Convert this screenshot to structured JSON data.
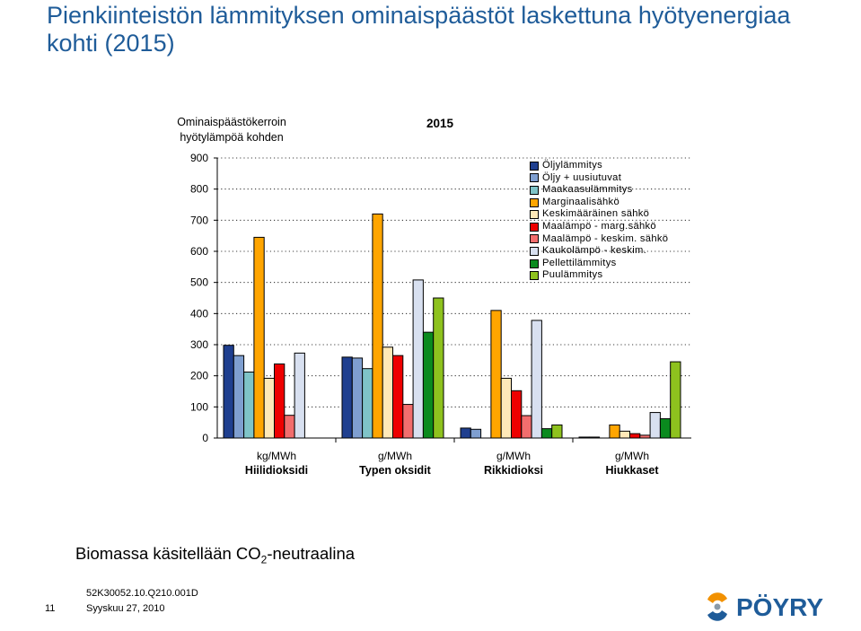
{
  "slide": {
    "title": "Pienkiinteistön lämmityksen ominaispäästöt laskettuna hyötyenergiaa kohti (2015)",
    "footnote_main": "Biomassa käsitellään CO",
    "footnote_sub": "2",
    "footnote_rest": "-neutraalina",
    "doc_id": "52K30052.10.Q210.001D",
    "date": "Syyskuu 27, 2010",
    "page_number": "11",
    "logo_text": "PÖYRY"
  },
  "chart_data": {
    "type": "bar",
    "title": "2015",
    "ylabel": "Ominaispäästökerroin hyötylämpöä kohden",
    "ylim": [
      0,
      900
    ],
    "yticks": [
      0,
      100,
      200,
      300,
      400,
      500,
      600,
      700,
      800,
      900
    ],
    "grid": true,
    "legend_position": "top-right",
    "categories": [
      "Hiilidioksidi",
      "Typen oksidit",
      "Rikkidioksi",
      "Hiukkaset"
    ],
    "units": [
      "kg/MWh",
      "g/MWh",
      "g/MWh",
      "g/MWh"
    ],
    "series": [
      {
        "name": "Öljylämmitys",
        "color": "#1f3f8f",
        "values": [
          298,
          260,
          32,
          3
        ]
      },
      {
        "name": "Öljy + uusiutuvat",
        "color": "#7f9fd0",
        "values": [
          265,
          257,
          28,
          3
        ]
      },
      {
        "name": "Maakaasulämmitys",
        "color": "#7fc4c8",
        "values": [
          212,
          223,
          0,
          0
        ]
      },
      {
        "name": "Marginaalisähkö",
        "color": "#ffa500",
        "values": [
          645,
          720,
          410,
          42
        ]
      },
      {
        "name": "Keskimääräinen sähkö",
        "color": "#ffe9b8",
        "values": [
          192,
          292,
          192,
          22
        ]
      },
      {
        "name": "Maalämpö - marg.sähkö",
        "color": "#ee0000",
        "values": [
          238,
          265,
          152,
          14
        ]
      },
      {
        "name": "Maalämpö - keskim. sähkö",
        "color": "#f26d6d",
        "values": [
          73,
          108,
          72,
          9
        ]
      },
      {
        "name": "Kaukolämpö - keskim.",
        "color": "#d8e0f0",
        "values": [
          273,
          508,
          378,
          82
        ]
      },
      {
        "name": "Pellettilämmitys",
        "color": "#0a8a1e",
        "values": [
          0,
          340,
          30,
          62
        ]
      },
      {
        "name": "Puulämmitys",
        "color": "#8ec21e",
        "values": [
          0,
          450,
          42,
          245
        ]
      }
    ]
  }
}
